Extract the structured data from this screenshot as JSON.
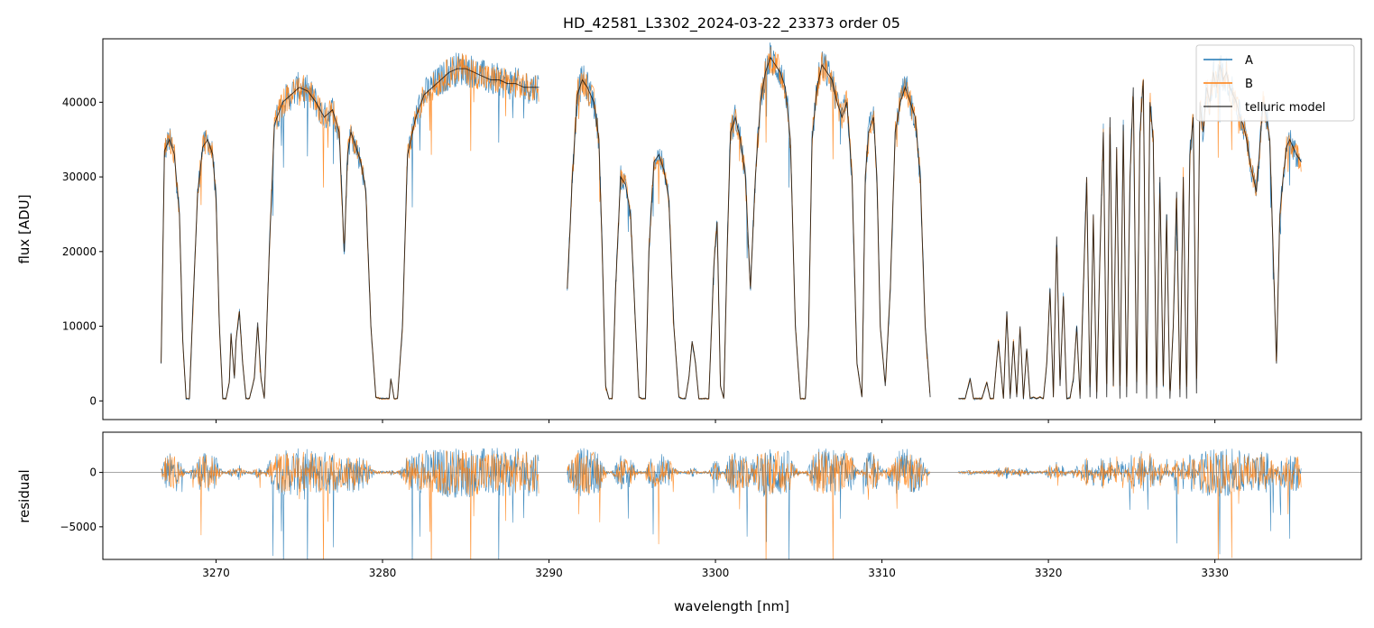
{
  "chart_data": [
    {
      "panel": "top",
      "type": "line",
      "title": "HD_42581_L3302_2024-03-22_23373  order 05",
      "xlabel": "",
      "ylabel": "flux [ADU]",
      "xlim": [
        3263.2,
        3338.8
      ],
      "ylim": [
        -2500,
        48500
      ],
      "yticks": [
        0,
        10000,
        20000,
        30000,
        40000
      ],
      "ytick_labels": [
        "0",
        "10000",
        "20000",
        "30000",
        "40000"
      ],
      "xticks": [
        3270,
        3280,
        3290,
        3300,
        3310,
        3320,
        3330
      ],
      "xtick_labels_shown": false,
      "grid": false,
      "legend": {
        "position": "top-right",
        "entries": [
          "A",
          "B",
          "telluric model"
        ]
      },
      "series": [
        {
          "name": "A",
          "color": "#1f77b4",
          "description": "observed spectrum A"
        },
        {
          "name": "B",
          "color": "#ff7f0e",
          "description": "observed spectrum B"
        },
        {
          "name": "telluric model",
          "color": "#000000",
          "x": [
            3266.7,
            3266.9,
            3267.2,
            3267.5,
            3267.8,
            3268.0,
            3268.2,
            3268.4,
            3268.6,
            3268.9,
            3269.2,
            3269.5,
            3269.8,
            3270.0,
            3270.2,
            3270.4,
            3270.6,
            3270.8,
            3270.9,
            3271.1,
            3271.2,
            3271.4,
            3271.6,
            3271.8,
            3272.0,
            3272.3,
            3272.5,
            3272.7,
            3272.9,
            3273.2,
            3273.5,
            3274.0,
            3274.5,
            3275.0,
            3275.5,
            3276.0,
            3276.5,
            3277.0,
            3277.4,
            3277.7,
            3277.9,
            3278.1,
            3278.4,
            3278.7,
            3279.0,
            3279.3,
            3279.6,
            3279.9,
            3280.2,
            3280.4,
            3280.5,
            3280.7,
            3280.9,
            3281.2,
            3281.5,
            3282.0,
            3282.5,
            3283.0,
            3283.5,
            3284.0,
            3284.5,
            3285.0,
            3285.5,
            3286.0,
            3286.5,
            3287.0,
            3287.5,
            3288.0,
            3288.5,
            3289.0,
            3289.4
          ],
          "y": [
            5000,
            33500,
            35000,
            33000,
            25000,
            8000,
            300,
            300,
            12000,
            28000,
            34000,
            35000,
            33000,
            27000,
            10000,
            300,
            300,
            2500,
            9000,
            3000,
            8000,
            12000,
            5000,
            300,
            300,
            3000,
            10500,
            3000,
            300,
            20000,
            37000,
            40000,
            41000,
            42000,
            41500,
            40000,
            38000,
            39000,
            36000,
            20000,
            33000,
            36000,
            34000,
            32000,
            28000,
            10000,
            500,
            300,
            300,
            300,
            3000,
            300,
            300,
            10000,
            33000,
            38000,
            41000,
            42000,
            43000,
            44000,
            44500,
            44500,
            44000,
            43500,
            43000,
            43000,
            42500,
            42500,
            42000,
            42000,
            42000
          ]
        },
        {
          "name": "telluric model (3291-3313)",
          "x": [
            3291.1,
            3291.4,
            3291.7,
            3292.0,
            3292.3,
            3292.7,
            3293.0,
            3293.2,
            3293.4,
            3293.6,
            3293.8,
            3294.0,
            3294.3,
            3294.6,
            3294.9,
            3295.2,
            3295.4,
            3295.6,
            3295.8,
            3296.0,
            3296.3,
            3296.6,
            3296.9,
            3297.2,
            3297.5,
            3297.8,
            3298.0,
            3298.2,
            3298.4,
            3298.6,
            3298.8,
            3299.0,
            3299.2,
            3299.4,
            3299.6,
            3299.9,
            3300.1,
            3300.3,
            3300.5,
            3300.7,
            3300.9,
            3301.2,
            3301.5,
            3301.8,
            3302.1,
            3302.4,
            3302.7,
            3303.0,
            3303.3,
            3303.6,
            3303.9,
            3304.2,
            3304.5,
            3304.8,
            3305.1,
            3305.4,
            3305.6,
            3305.8,
            3306.1,
            3306.4,
            3306.7,
            3307.0,
            3307.3,
            3307.6,
            3307.9,
            3308.2,
            3308.5,
            3308.8,
            3309.0,
            3309.2,
            3309.5,
            3309.7,
            3309.9,
            3310.2,
            3310.5,
            3310.8,
            3311.1,
            3311.4,
            3311.7,
            3312.0,
            3312.3,
            3312.6,
            3312.9
          ],
          "y": [
            15000,
            30000,
            41000,
            43000,
            42000,
            40000,
            35000,
            20000,
            2000,
            300,
            300,
            15000,
            30000,
            29000,
            25000,
            10000,
            500,
            300,
            300,
            20000,
            32000,
            33000,
            31000,
            27000,
            10000,
            500,
            300,
            300,
            3000,
            8000,
            5000,
            300,
            300,
            300,
            300,
            18000,
            24000,
            2000,
            300,
            20000,
            36000,
            38000,
            35000,
            30000,
            15000,
            30000,
            40000,
            44000,
            46000,
            45000,
            44000,
            42000,
            35000,
            10000,
            300,
            300,
            10000,
            35000,
            42000,
            45000,
            44000,
            43000,
            40000,
            38000,
            40000,
            30000,
            5000,
            500,
            30000,
            36000,
            38000,
            30000,
            10000,
            2000,
            15000,
            36000,
            40000,
            42000,
            40000,
            38000,
            30000,
            10000,
            500
          ]
        },
        {
          "name": "telluric model (3314-3336)",
          "x": [
            3314.6,
            3315.0,
            3315.3,
            3315.5,
            3315.7,
            3316.0,
            3316.3,
            3316.5,
            3316.7,
            3317.0,
            3317.3,
            3317.5,
            3317.7,
            3317.9,
            3318.1,
            3318.3,
            3318.5,
            3318.7,
            3318.9,
            3319.1,
            3319.3,
            3319.5,
            3319.7,
            3319.9,
            3320.1,
            3320.3,
            3320.5,
            3320.7,
            3320.9,
            3321.1,
            3321.3,
            3321.5,
            3321.7,
            3321.9,
            3322.1,
            3322.3,
            3322.5,
            3322.7,
            3322.9,
            3323.1,
            3323.3,
            3323.5,
            3323.7,
            3323.9,
            3324.1,
            3324.3,
            3324.5,
            3324.7,
            3324.9,
            3325.1,
            3325.3,
            3325.5,
            3325.7,
            3325.9,
            3326.1,
            3326.3,
            3326.5,
            3326.7,
            3326.9,
            3327.1,
            3327.3,
            3327.5,
            3327.7,
            3327.9,
            3328.1,
            3328.3,
            3328.5,
            3328.7,
            3328.9,
            3329.1,
            3329.3,
            3329.5,
            3329.7,
            3329.9,
            3330.1,
            3330.3,
            3330.5,
            3330.7,
            3330.9,
            3331.1,
            3331.3,
            3331.5,
            3331.7,
            3331.9,
            3332.1,
            3332.3,
            3332.5,
            3332.7,
            3332.9,
            3333.1,
            3333.3,
            3333.5,
            3333.7,
            3333.9,
            3334.1,
            3334.3,
            3334.5,
            3334.7,
            3334.9,
            3335.2
          ],
          "y": [
            300,
            300,
            3000,
            300,
            300,
            300,
            2500,
            300,
            300,
            8000,
            300,
            12000,
            300,
            8000,
            500,
            10000,
            300,
            7000,
            300,
            500,
            300,
            500,
            300,
            5000,
            15000,
            500,
            22000,
            2000,
            14000,
            300,
            400,
            3000,
            10000,
            300,
            15000,
            30000,
            500,
            25000,
            300,
            20000,
            36000,
            500,
            38000,
            2000,
            34000,
            300,
            37000,
            500,
            30000,
            42000,
            1000,
            36000,
            43000,
            300,
            40000,
            35000,
            300,
            30000,
            2000,
            25000,
            300,
            10000,
            28000,
            500,
            30000,
            300,
            33000,
            38000,
            1000,
            40000,
            36000,
            42000,
            40000,
            44000,
            42000,
            45000,
            43000,
            44000,
            42000,
            41000,
            40000,
            38000,
            37000,
            35000,
            32000,
            30000,
            28000,
            34000,
            40000,
            38000,
            35000,
            20000,
            5000,
            25000,
            30000,
            34000,
            35000,
            34000,
            33000,
            32000
          ]
        }
      ]
    },
    {
      "panel": "bottom",
      "type": "line",
      "title": "",
      "xlabel": "wavelength [nm]",
      "ylabel": "residual",
      "xlim": [
        3263.2,
        3338.8
      ],
      "ylim": [
        -8000,
        3700
      ],
      "yticks": [
        -5000,
        0
      ],
      "ytick_labels": [
        "−5000",
        "0"
      ],
      "xticks": [
        3270,
        3280,
        3290,
        3300,
        3310,
        3320,
        3330
      ],
      "xtick_labels": [
        "3270",
        "3280",
        "3290",
        "3300",
        "3310",
        "3320",
        "3330"
      ],
      "zero_line": true,
      "grid": false,
      "series": [
        {
          "name": "A",
          "color": "#1f77b4",
          "description": "residual of A minus telluric model"
        },
        {
          "name": "B",
          "color": "#ff7f0e",
          "description": "residual of B minus telluric model"
        }
      ]
    }
  ],
  "legend_labels": [
    "A",
    "B",
    "telluric model"
  ],
  "colors": {
    "A": "#1f77b4",
    "B": "#ff7f0e",
    "model": "#000000"
  }
}
